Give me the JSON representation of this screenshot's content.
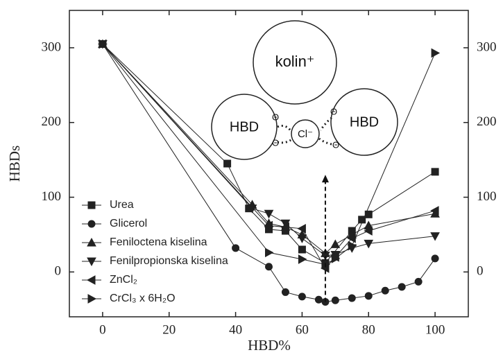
{
  "chart_data": {
    "type": "line",
    "xlabel": "HBD%",
    "ylabel": "HBDs",
    "xlim": [
      -10,
      110
    ],
    "ylim": [
      -60,
      350
    ],
    "y2lim": [
      -60,
      350
    ],
    "xticks": [
      0,
      20,
      40,
      60,
      80,
      100
    ],
    "yticks": [
      0,
      100,
      200,
      300
    ],
    "y2ticks": [
      0,
      100,
      200,
      300
    ],
    "legend": "lower left",
    "series": [
      {
        "name": "Urea",
        "marker": "square",
        "color": "#222",
        "x": [
          0,
          37.5,
          44,
          50,
          55,
          60,
          67,
          75,
          78,
          80,
          100
        ],
        "values": [
          305,
          145,
          85,
          57,
          55,
          30,
          12,
          55,
          70,
          77,
          134
        ]
      },
      {
        "name": "Glicerol",
        "marker": "circle",
        "color": "#222",
        "x": [
          0,
          40,
          50,
          55,
          60,
          65,
          67,
          70,
          75,
          80,
          85,
          90,
          95,
          100
        ],
        "values": [
          305,
          32,
          7,
          -27,
          -33,
          -37,
          -40,
          -38,
          -35,
          -32,
          -25,
          -20,
          -13,
          18
        ]
      },
      {
        "name": "Feniloctena kiselina",
        "marker": "triangle-up",
        "color": "#222",
        "x": [
          0,
          45,
          50,
          55,
          60,
          67,
          70,
          75,
          80,
          100
        ],
        "values": [
          305,
          90,
          65,
          60,
          50,
          25,
          37,
          50,
          62,
          78
        ]
      },
      {
        "name": "Fenilpropionska kiselina",
        "marker": "triangle-down",
        "color": "#222",
        "x": [
          0,
          45,
          50,
          55,
          60,
          67,
          70,
          75,
          80,
          100
        ],
        "values": [
          305,
          85,
          78,
          65,
          45,
          22,
          23,
          32,
          38,
          48
        ]
      },
      {
        "name": "ZnCl₂",
        "marker": "triangle-left",
        "color": "#222",
        "x": [
          0,
          50,
          55,
          60,
          67,
          70,
          75,
          80,
          100
        ],
        "values": [
          305,
          62,
          60,
          58,
          5,
          20,
          45,
          55,
          82
        ]
      },
      {
        "name": "CrCl₃ x 6H₂O",
        "marker": "triangle-right",
        "color": "#222",
        "x": [
          0,
          50,
          60,
          67,
          70,
          75,
          100
        ],
        "values": [
          305,
          26,
          17,
          10,
          18,
          35,
          293
        ]
      }
    ],
    "arrow": {
      "x": 67,
      "y": [
        -40,
        130
      ]
    },
    "inset": {
      "cation": "kolin⁺",
      "hbd_left": "HBD",
      "hbd_right": "HBD",
      "anion": "Cl⁻",
      "charges": [
        "Θ",
        "Θ",
        "Θ",
        "Θ"
      ]
    }
  }
}
